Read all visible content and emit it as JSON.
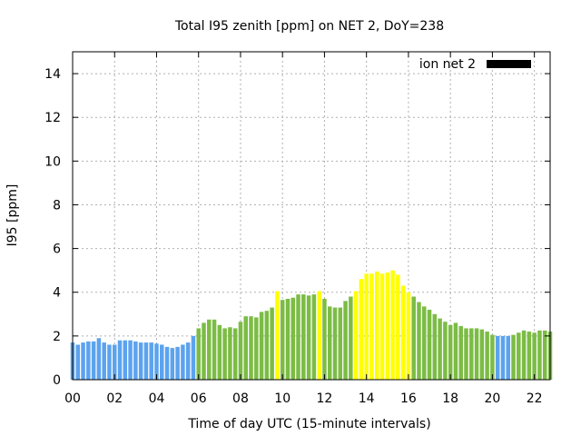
{
  "chart_data": {
    "type": "bar",
    "title": "Total I95 zenith [ppm] on NET 2, DoY=238",
    "xlabel": "Time of day UTC (15-minute intervals)",
    "ylabel": "I95 [ppm]",
    "x_unit": "hour of day UTC",
    "x_step_hours": 0.25,
    "xlim": [
      0,
      22.75
    ],
    "ylim": [
      0,
      15
    ],
    "x_ticks": [
      {
        "value": 0,
        "label": "00"
      },
      {
        "value": 2,
        "label": "02"
      },
      {
        "value": 4,
        "label": "04"
      },
      {
        "value": 6,
        "label": "06"
      },
      {
        "value": 8,
        "label": "08"
      },
      {
        "value": 10,
        "label": "10"
      },
      {
        "value": 12,
        "label": "12"
      },
      {
        "value": 14,
        "label": "14"
      },
      {
        "value": 16,
        "label": "16"
      },
      {
        "value": 18,
        "label": "18"
      },
      {
        "value": 20,
        "label": "20"
      },
      {
        "value": 22,
        "label": "22"
      }
    ],
    "y_ticks": [
      {
        "value": 0,
        "label": "0"
      },
      {
        "value": 2,
        "label": "2"
      },
      {
        "value": 4,
        "label": "4"
      },
      {
        "value": 6,
        "label": "6"
      },
      {
        "value": 8,
        "label": "8"
      },
      {
        "value": 10,
        "label": "10"
      },
      {
        "value": 12,
        "label": "12"
      },
      {
        "value": 14,
        "label": "14"
      }
    ],
    "grid": true,
    "legend": {
      "label": "ion net 2",
      "position": "top-right",
      "color": "#000000"
    },
    "colors": {
      "blue": "#5ca3ee",
      "green": "#7cbc45",
      "yellow": "#ffff00"
    },
    "bars": [
      {
        "x": 0.0,
        "value": 1.7,
        "color": "blue"
      },
      {
        "x": 0.25,
        "value": 1.6,
        "color": "blue"
      },
      {
        "x": 0.5,
        "value": 1.7,
        "color": "blue"
      },
      {
        "x": 0.75,
        "value": 1.75,
        "color": "blue"
      },
      {
        "x": 1.0,
        "value": 1.75,
        "color": "blue"
      },
      {
        "x": 1.25,
        "value": 1.9,
        "color": "blue"
      },
      {
        "x": 1.5,
        "value": 1.7,
        "color": "blue"
      },
      {
        "x": 1.75,
        "value": 1.6,
        "color": "blue"
      },
      {
        "x": 2.0,
        "value": 1.6,
        "color": "blue"
      },
      {
        "x": 2.25,
        "value": 1.8,
        "color": "blue"
      },
      {
        "x": 2.5,
        "value": 1.8,
        "color": "blue"
      },
      {
        "x": 2.75,
        "value": 1.8,
        "color": "blue"
      },
      {
        "x": 3.0,
        "value": 1.75,
        "color": "blue"
      },
      {
        "x": 3.25,
        "value": 1.7,
        "color": "blue"
      },
      {
        "x": 3.5,
        "value": 1.7,
        "color": "blue"
      },
      {
        "x": 3.75,
        "value": 1.7,
        "color": "blue"
      },
      {
        "x": 4.0,
        "value": 1.65,
        "color": "blue"
      },
      {
        "x": 4.25,
        "value": 1.6,
        "color": "blue"
      },
      {
        "x": 4.5,
        "value": 1.5,
        "color": "blue"
      },
      {
        "x": 4.75,
        "value": 1.45,
        "color": "blue"
      },
      {
        "x": 5.0,
        "value": 1.5,
        "color": "blue"
      },
      {
        "x": 5.25,
        "value": 1.6,
        "color": "blue"
      },
      {
        "x": 5.5,
        "value": 1.7,
        "color": "blue"
      },
      {
        "x": 5.75,
        "value": 2.0,
        "color": "blue"
      },
      {
        "x": 6.0,
        "value": 2.35,
        "color": "green"
      },
      {
        "x": 6.25,
        "value": 2.6,
        "color": "green"
      },
      {
        "x": 6.5,
        "value": 2.75,
        "color": "green"
      },
      {
        "x": 6.75,
        "value": 2.75,
        "color": "green"
      },
      {
        "x": 7.0,
        "value": 2.5,
        "color": "green"
      },
      {
        "x": 7.25,
        "value": 2.35,
        "color": "green"
      },
      {
        "x": 7.5,
        "value": 2.4,
        "color": "green"
      },
      {
        "x": 7.75,
        "value": 2.35,
        "color": "green"
      },
      {
        "x": 8.0,
        "value": 2.65,
        "color": "green"
      },
      {
        "x": 8.25,
        "value": 2.9,
        "color": "green"
      },
      {
        "x": 8.5,
        "value": 2.9,
        "color": "green"
      },
      {
        "x": 8.75,
        "value": 2.85,
        "color": "green"
      },
      {
        "x": 9.0,
        "value": 3.1,
        "color": "green"
      },
      {
        "x": 9.25,
        "value": 3.15,
        "color": "green"
      },
      {
        "x": 9.5,
        "value": 3.3,
        "color": "green"
      },
      {
        "x": 9.75,
        "value": 4.05,
        "color": "yellow"
      },
      {
        "x": 10.0,
        "value": 3.65,
        "color": "green"
      },
      {
        "x": 10.25,
        "value": 3.7,
        "color": "green"
      },
      {
        "x": 10.5,
        "value": 3.75,
        "color": "green"
      },
      {
        "x": 10.75,
        "value": 3.9,
        "color": "green"
      },
      {
        "x": 11.0,
        "value": 3.9,
        "color": "green"
      },
      {
        "x": 11.25,
        "value": 3.85,
        "color": "green"
      },
      {
        "x": 11.5,
        "value": 3.9,
        "color": "green"
      },
      {
        "x": 11.75,
        "value": 4.05,
        "color": "yellow"
      },
      {
        "x": 12.0,
        "value": 3.7,
        "color": "green"
      },
      {
        "x": 12.25,
        "value": 3.35,
        "color": "green"
      },
      {
        "x": 12.5,
        "value": 3.3,
        "color": "green"
      },
      {
        "x": 12.75,
        "value": 3.3,
        "color": "green"
      },
      {
        "x": 13.0,
        "value": 3.6,
        "color": "green"
      },
      {
        "x": 13.25,
        "value": 3.8,
        "color": "green"
      },
      {
        "x": 13.5,
        "value": 4.05,
        "color": "yellow"
      },
      {
        "x": 13.75,
        "value": 4.6,
        "color": "yellow"
      },
      {
        "x": 14.0,
        "value": 4.85,
        "color": "yellow"
      },
      {
        "x": 14.25,
        "value": 4.85,
        "color": "yellow"
      },
      {
        "x": 14.5,
        "value": 4.95,
        "color": "yellow"
      },
      {
        "x": 14.75,
        "value": 4.85,
        "color": "yellow"
      },
      {
        "x": 15.0,
        "value": 4.9,
        "color": "yellow"
      },
      {
        "x": 15.25,
        "value": 5.0,
        "color": "yellow"
      },
      {
        "x": 15.5,
        "value": 4.8,
        "color": "yellow"
      },
      {
        "x": 15.75,
        "value": 4.3,
        "color": "yellow"
      },
      {
        "x": 16.0,
        "value": 4.0,
        "color": "yellow"
      },
      {
        "x": 16.25,
        "value": 3.8,
        "color": "green"
      },
      {
        "x": 16.5,
        "value": 3.55,
        "color": "green"
      },
      {
        "x": 16.75,
        "value": 3.35,
        "color": "green"
      },
      {
        "x": 17.0,
        "value": 3.2,
        "color": "green"
      },
      {
        "x": 17.25,
        "value": 3.0,
        "color": "green"
      },
      {
        "x": 17.5,
        "value": 2.8,
        "color": "green"
      },
      {
        "x": 17.75,
        "value": 2.65,
        "color": "green"
      },
      {
        "x": 18.0,
        "value": 2.5,
        "color": "green"
      },
      {
        "x": 18.25,
        "value": 2.6,
        "color": "green"
      },
      {
        "x": 18.5,
        "value": 2.45,
        "color": "green"
      },
      {
        "x": 18.75,
        "value": 2.35,
        "color": "green"
      },
      {
        "x": 19.0,
        "value": 2.35,
        "color": "green"
      },
      {
        "x": 19.25,
        "value": 2.35,
        "color": "green"
      },
      {
        "x": 19.5,
        "value": 2.3,
        "color": "green"
      },
      {
        "x": 19.75,
        "value": 2.2,
        "color": "green"
      },
      {
        "x": 20.0,
        "value": 2.05,
        "color": "green"
      },
      {
        "x": 20.25,
        "value": 2.0,
        "color": "blue"
      },
      {
        "x": 20.5,
        "value": 2.0,
        "color": "blue"
      },
      {
        "x": 20.75,
        "value": 2.0,
        "color": "blue"
      },
      {
        "x": 21.0,
        "value": 2.05,
        "color": "green"
      },
      {
        "x": 21.25,
        "value": 2.15,
        "color": "green"
      },
      {
        "x": 21.5,
        "value": 2.25,
        "color": "green"
      },
      {
        "x": 21.75,
        "value": 2.2,
        "color": "green"
      },
      {
        "x": 22.0,
        "value": 2.15,
        "color": "green"
      },
      {
        "x": 22.25,
        "value": 2.25,
        "color": "green"
      },
      {
        "x": 22.5,
        "value": 2.25,
        "color": "green"
      },
      {
        "x": 22.75,
        "value": 2.2,
        "color": "green"
      }
    ]
  }
}
